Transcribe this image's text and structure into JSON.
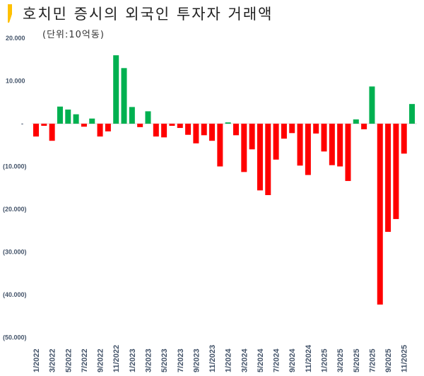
{
  "colors": {
    "positive": "#00b050",
    "negative": "#ff0000",
    "marker": "#ffc000",
    "axis_text": "#44546a"
  },
  "chart_data": {
    "type": "bar",
    "title": "호치민 증시의 외국인 투자자 거래액",
    "subtitle": "(단위:10억동)",
    "xlabel": "",
    "ylabel": "",
    "ylim": [
      -50000,
      20000
    ],
    "grid": false,
    "y_ticks": [
      {
        "value": 20000,
        "label": "20.000"
      },
      {
        "value": 10000,
        "label": "10.000"
      },
      {
        "value": 0,
        "label": "-"
      },
      {
        "value": -10000,
        "label": "(10.000)"
      },
      {
        "value": -20000,
        "label": "(20.000)"
      },
      {
        "value": -30000,
        "label": "(30.000)"
      },
      {
        "value": -40000,
        "label": "(40.000)"
      },
      {
        "value": -50000,
        "label": "(50.000)"
      }
    ],
    "x_tick_labels": [
      "1/2022",
      "3/2022",
      "5/2022",
      "7/2022",
      "9/2022",
      "11/2022",
      "1/2023",
      "3/2023",
      "5/2023",
      "7/2023",
      "9/2023",
      "11/2023",
      "1/2024",
      "3/2024",
      "5/2024",
      "7/2024",
      "9/2024",
      "11/2024",
      "1/2025",
      "3/2025",
      "5/2025",
      "7/2025",
      "9/2025",
      "11/2025"
    ],
    "categories": [
      "1/2022",
      "2/2022",
      "3/2022",
      "4/2022",
      "5/2022",
      "6/2022",
      "7/2022",
      "8/2022",
      "9/2022",
      "10/2022",
      "11/2022",
      "12/2022",
      "1/2023",
      "2/2023",
      "3/2023",
      "4/2023",
      "5/2023",
      "6/2023",
      "7/2023",
      "8/2023",
      "9/2023",
      "10/2023",
      "11/2023",
      "12/2023",
      "1/2024",
      "2/2024",
      "3/2024",
      "4/2024",
      "5/2024",
      "6/2024",
      "7/2024",
      "8/2024",
      "9/2024",
      "10/2024",
      "11/2024",
      "12/2024",
      "1/2025",
      "2/2025",
      "3/2025",
      "4/2025",
      "5/2025",
      "6/2025",
      "7/2025",
      "8/2025",
      "9/2025",
      "10/2025",
      "11/2025",
      "12/2025"
    ],
    "values": [
      -3000,
      -500,
      -4000,
      4000,
      3300,
      2200,
      -700,
      1200,
      -3000,
      -1800,
      16000,
      13000,
      3900,
      -800,
      2900,
      -3000,
      -3200,
      -500,
      -1000,
      -2600,
      -4600,
      -2700,
      -4000,
      -10000,
      300,
      -2700,
      -11300,
      -6000,
      -15600,
      -16700,
      -8400,
      -3500,
      -2200,
      -9800,
      -12000,
      -2300,
      -6500,
      -9700,
      -10000,
      -13400,
      1000,
      -1300,
      8700,
      -42300,
      -25300,
      -22300,
      -7000,
      4600
    ]
  }
}
